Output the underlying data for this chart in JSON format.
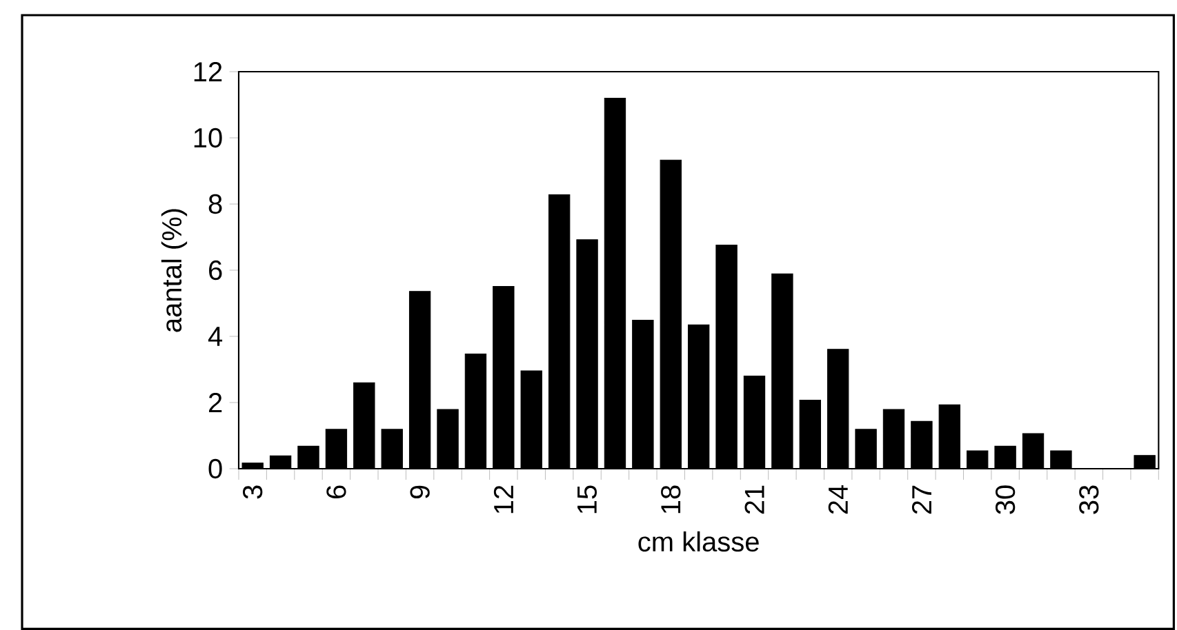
{
  "chart_data": {
    "type": "bar",
    "xlabel": "cm klasse",
    "ylabel": "aantal (%)",
    "categories": [
      "3",
      null,
      null,
      "6",
      null,
      null,
      "9",
      null,
      null,
      "12",
      null,
      null,
      "15",
      null,
      null,
      "18",
      null,
      null,
      "21",
      null,
      null,
      "24",
      null,
      null,
      "27",
      null,
      null,
      "30",
      null,
      null,
      "33",
      null,
      null
    ],
    "values": [
      0.17,
      0.39,
      0.68,
      1.19,
      2.6,
      1.19,
      5.36,
      1.79,
      3.47,
      5.51,
      2.96,
      8.28,
      6.92,
      11.2,
      4.49,
      9.33,
      4.35,
      6.76,
      2.8,
      5.89,
      2.07,
      3.61,
      1.19,
      1.79,
      1.43,
      1.93,
      0.54,
      0.68,
      1.06,
      0.54,
      0,
      0,
      0.4
    ],
    "color": "#000000",
    "ylim": [
      0,
      12
    ],
    "yticks": [
      0,
      2,
      4,
      6,
      8,
      10,
      12
    ]
  }
}
